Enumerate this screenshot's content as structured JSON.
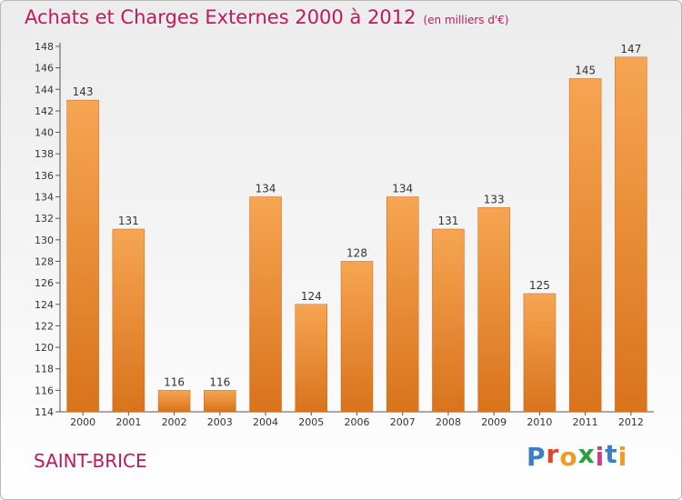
{
  "header": {
    "title": "Achats et Charges Externes 2000 à 2012",
    "subtitle": "(en milliers d'€)"
  },
  "footer": {
    "city": "SAINT-BRICE",
    "logo": "Proxiti"
  },
  "colors": {
    "title": "#c2185b",
    "bar_light": "#f6a552",
    "bar_dark": "#d9731c",
    "logo_letters": [
      "#3a7fc4",
      "#e0442c",
      "#f29b1f",
      "#2e9c3f",
      "#d23a8a",
      "#3a7fc4",
      "#f29b1f"
    ]
  },
  "chart_data": {
    "type": "bar",
    "categories": [
      "2000",
      "2001",
      "2002",
      "2003",
      "2004",
      "2005",
      "2006",
      "2007",
      "2008",
      "2009",
      "2010",
      "2011",
      "2012"
    ],
    "values": [
      143,
      131,
      116,
      116,
      134,
      124,
      128,
      134,
      131,
      133,
      125,
      145,
      147
    ],
    "ylim": [
      114,
      148
    ],
    "yticks": [
      114,
      116,
      118,
      120,
      122,
      124,
      126,
      128,
      130,
      132,
      134,
      136,
      138,
      140,
      142,
      144,
      146,
      148
    ],
    "grid": false,
    "data_labels": true
  }
}
